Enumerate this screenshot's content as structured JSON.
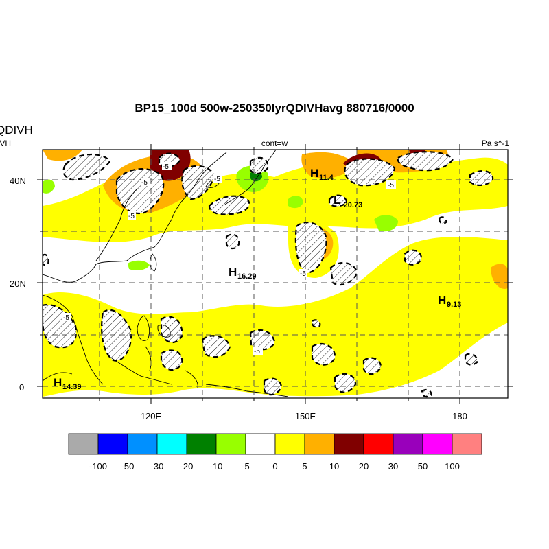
{
  "title": "BP15_100d 500w-250350lyrQDIVHavg  880716/0000",
  "left_title": "QDIVH",
  "left_subtitle": "IVH",
  "center_label": "cont=w",
  "units": "Pa s^-1",
  "lat_labels": [
    "40N",
    "20N",
    "0"
  ],
  "lon_labels": [
    "120E",
    "150E",
    "180"
  ],
  "highs_lows": [
    {
      "letter": "H",
      "value": "11.4"
    },
    {
      "letter": "L",
      "value": "-20.73"
    },
    {
      "letter": "H",
      "value": "16.29"
    },
    {
      "letter": "H",
      "value": "9.13"
    },
    {
      "letter": "H",
      "value": "14.39"
    }
  ],
  "contour_labels": [
    "-5",
    "-5",
    "-5",
    "-5",
    "-5",
    "-5",
    "-5",
    "-5",
    "-5"
  ],
  "colorbar": {
    "labels": [
      "-100",
      "-50",
      "-30",
      "-20",
      "-10",
      "-5",
      "0",
      "5",
      "10",
      "20",
      "30",
      "50",
      "100"
    ],
    "colors": [
      "#aaaaaa",
      "#0000ff",
      "#0090ff",
      "#00ffff",
      "#008000",
      "#98ff00",
      "#ffffff",
      "#ffff00",
      "#ffb000",
      "#800000",
      "#ff0000",
      "#9900bb",
      "#ff00ff",
      "#ff8080"
    ]
  },
  "palette": {
    "yellow": "#ffff00",
    "orange": "#ffb000",
    "darkred": "#800000",
    "green": "#98ff00",
    "darkgreen": "#008000",
    "gray": "#aaaaaa"
  }
}
